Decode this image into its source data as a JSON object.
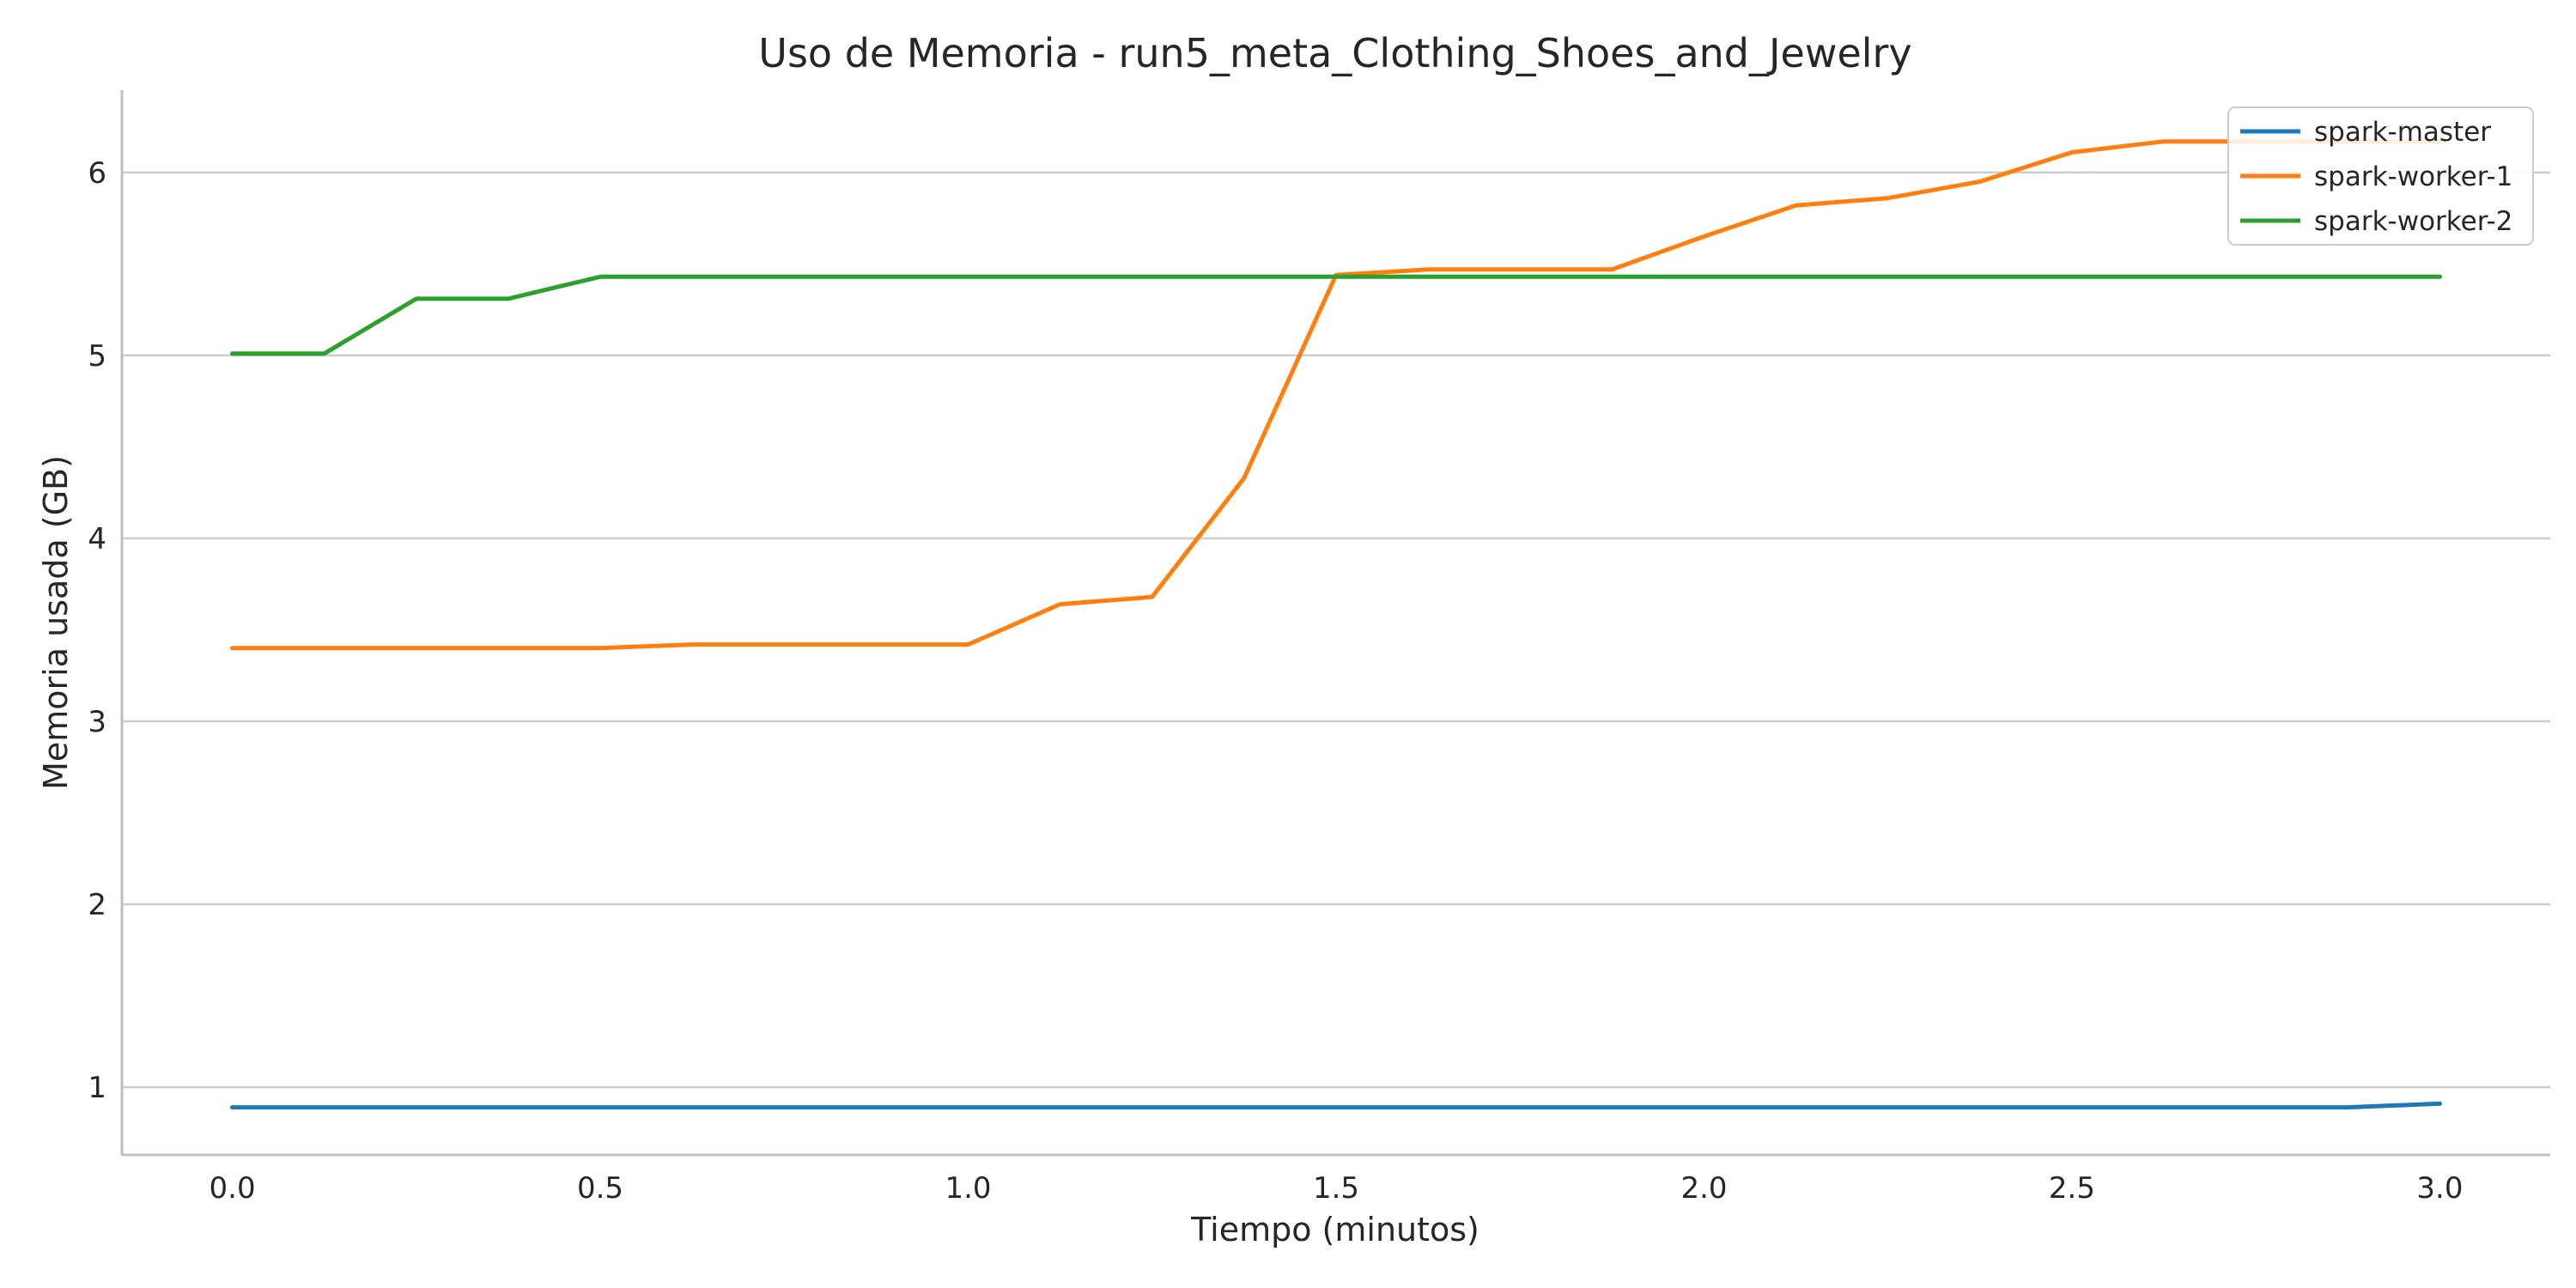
{
  "chart_data": {
    "type": "line",
    "title": "Uso de Memoria - run5_meta_Clothing_Shoes_and_Jewelry",
    "xlabel": "Tiempo (minutos)",
    "ylabel": "Memoria usada (GB)",
    "xlim": [
      -0.15,
      3.15
    ],
    "ylim": [
      0.63,
      6.45
    ],
    "xticks": [
      0.0,
      0.5,
      1.0,
      1.5,
      2.0,
      2.5,
      3.0
    ],
    "xtick_labels": [
      "0.0",
      "0.5",
      "1.0",
      "1.5",
      "2.0",
      "2.5",
      "3.0"
    ],
    "yticks": [
      1,
      2,
      3,
      4,
      5,
      6
    ],
    "ytick_labels": [
      "1",
      "2",
      "3",
      "4",
      "5",
      "6"
    ],
    "grid": "horizontal",
    "legend_position": "top-right",
    "series": [
      {
        "name": "spark-master",
        "color": "#1f77b4",
        "x": [
          0.0,
          0.125,
          0.25,
          0.375,
          0.5,
          0.625,
          0.75,
          0.875,
          1.0,
          1.125,
          1.25,
          1.375,
          1.5,
          1.625,
          1.75,
          1.875,
          2.0,
          2.125,
          2.25,
          2.375,
          2.5,
          2.625,
          2.75,
          2.875,
          3.0
        ],
        "y": [
          0.89,
          0.89,
          0.89,
          0.89,
          0.89,
          0.89,
          0.89,
          0.89,
          0.89,
          0.89,
          0.89,
          0.89,
          0.89,
          0.89,
          0.89,
          0.89,
          0.89,
          0.89,
          0.89,
          0.89,
          0.89,
          0.89,
          0.89,
          0.89,
          0.91
        ]
      },
      {
        "name": "spark-worker-1",
        "color": "#ff7f0e",
        "x": [
          0.0,
          0.125,
          0.25,
          0.375,
          0.5,
          0.625,
          0.75,
          0.875,
          1.0,
          1.125,
          1.25,
          1.375,
          1.5,
          1.625,
          1.75,
          1.875,
          2.0,
          2.125,
          2.25,
          2.375,
          2.5,
          2.625,
          2.75,
          2.875,
          3.0
        ],
        "y": [
          3.4,
          3.4,
          3.4,
          3.4,
          3.4,
          3.42,
          3.42,
          3.42,
          3.42,
          3.64,
          3.68,
          4.33,
          5.44,
          5.47,
          5.47,
          5.47,
          5.65,
          5.82,
          5.86,
          5.95,
          6.11,
          6.17,
          6.17,
          6.17,
          6.17
        ]
      },
      {
        "name": "spark-worker-2",
        "color": "#2ca02c",
        "x": [
          0.0,
          0.125,
          0.25,
          0.375,
          0.5,
          0.625,
          0.75,
          0.875,
          1.0,
          1.125,
          1.25,
          1.375,
          1.5,
          1.625,
          1.75,
          1.875,
          2.0,
          2.125,
          2.25,
          2.375,
          2.5,
          2.625,
          2.75,
          2.875,
          3.0
        ],
        "y": [
          5.01,
          5.01,
          5.31,
          5.31,
          5.43,
          5.43,
          5.43,
          5.43,
          5.43,
          5.43,
          5.43,
          5.43,
          5.43,
          5.43,
          5.43,
          5.43,
          5.43,
          5.43,
          5.43,
          5.43,
          5.43,
          5.43,
          5.43,
          5.43,
          5.43
        ]
      }
    ]
  }
}
